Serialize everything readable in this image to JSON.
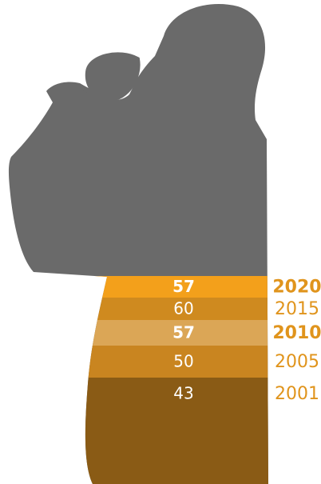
{
  "chart_data": {
    "type": "pictorial-bands",
    "categories": [
      "2020",
      "2015",
      "2010",
      "2005",
      "2001"
    ],
    "values": [
      57,
      60,
      57,
      50,
      43
    ],
    "colors": [
      "#f3a01b",
      "#cf8a1f",
      "#dba656",
      "#c98520",
      "#8a5b15"
    ],
    "bold": [
      true,
      false,
      true,
      false,
      false
    ],
    "label_color": "#e0941c",
    "silhouette_color": "#6a6a6a"
  }
}
